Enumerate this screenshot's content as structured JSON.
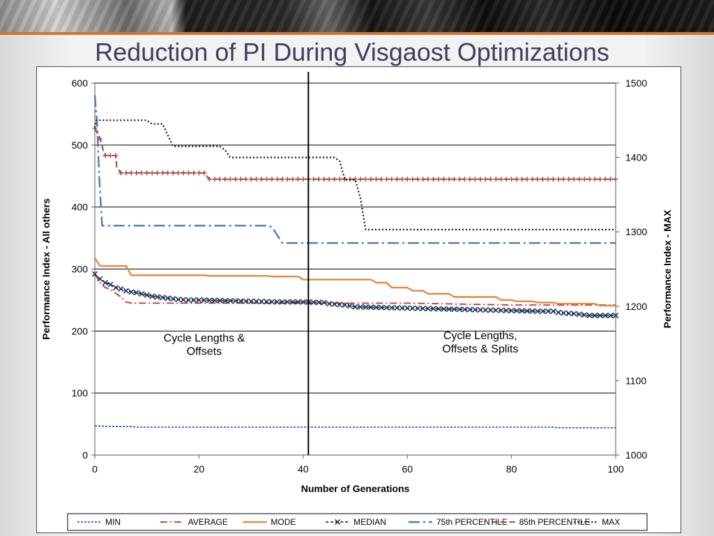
{
  "slide": {
    "title": "Reduction of PI During Visgaost Optimizations"
  },
  "chart_data": {
    "type": "line",
    "xlabel": "Number of Generations",
    "ylabel_left": "Performance Index - All others",
    "ylabel_right": "Performance Index - MAX",
    "xlim": [
      0,
      100
    ],
    "ylim_left": [
      0,
      600
    ],
    "ylim_right": [
      1000,
      1500
    ],
    "x_ticks": [
      "0",
      "20",
      "40",
      "60",
      "80",
      "100"
    ],
    "y_left_ticks": [
      "0",
      "100",
      "200",
      "300",
      "400",
      "500",
      "600"
    ],
    "y_right_ticks": [
      "1000",
      "1100",
      "1200",
      "1300",
      "1400",
      "1500"
    ],
    "grid": "horizontal",
    "legend_position": "bottom",
    "divider_x": 41,
    "annotations": [
      {
        "lines": [
          "Cycle Lengths &",
          "Offsets"
        ],
        "x": 21,
        "y": 183
      },
      {
        "lines": [
          "Cycle Lengths,",
          "Offsets & Splits"
        ],
        "x": 74,
        "y": 187
      }
    ],
    "series": [
      {
        "name": "MIN",
        "axis": "left",
        "color": "#1f3fd1",
        "dash": "3,2",
        "width": 1.6,
        "marker": "none",
        "x": [
          0,
          3,
          7,
          8,
          88,
          89,
          100
        ],
        "y": [
          47,
          46,
          46,
          45,
          45,
          44,
          44
        ]
      },
      {
        "name": "AVERAGE",
        "axis": "left",
        "color": "#d62b2b",
        "dash": "10,4,2,4",
        "width": 1.8,
        "marker": "none",
        "x": [
          0,
          1,
          2,
          3,
          5,
          6,
          7,
          20,
          40,
          60,
          80,
          100
        ],
        "y": [
          292,
          278,
          270,
          267,
          255,
          247,
          245,
          245,
          245,
          245,
          242,
          242
        ]
      },
      {
        "name": "MODE",
        "axis": "left",
        "color": "#e28a3c",
        "dash": "none",
        "width": 2.4,
        "marker": "none",
        "x": [
          0,
          1,
          6,
          7,
          21,
          22,
          33,
          34,
          39,
          40,
          53,
          54,
          56,
          57,
          60,
          61,
          63,
          64,
          68,
          69,
          77,
          78,
          80,
          81,
          84,
          85,
          88,
          89,
          96,
          97,
          100
        ],
        "y": [
          318,
          305,
          305,
          290,
          290,
          289,
          289,
          288,
          288,
          283,
          283,
          278,
          278,
          270,
          270,
          265,
          265,
          260,
          260,
          255,
          255,
          250,
          250,
          248,
          248,
          246,
          246,
          244,
          244,
          241,
          241
        ]
      },
      {
        "name": "MEDIAN",
        "axis": "left",
        "color": "#1c3557",
        "dash": "4,3",
        "width": 1.8,
        "marker": "x",
        "x": [
          0,
          1,
          2,
          3,
          4,
          5,
          6,
          7,
          8,
          9,
          10,
          11,
          12,
          14,
          16,
          18,
          20,
          25,
          30,
          35,
          40,
          44,
          45,
          48,
          50,
          55,
          60,
          65,
          70,
          75,
          80,
          85,
          88,
          89,
          90,
          92,
          93,
          94,
          95,
          100
        ],
        "y": [
          292,
          284,
          278,
          275,
          270,
          268,
          265,
          263,
          262,
          260,
          258,
          256,
          255,
          253,
          251,
          250,
          250,
          249,
          248,
          247,
          247,
          246,
          244,
          242,
          239,
          238,
          237,
          236,
          235,
          234,
          233,
          232,
          232,
          230,
          229,
          228,
          227,
          226,
          225,
          225
        ]
      },
      {
        "name": "75th PERCENTILE",
        "axis": "left",
        "color": "#4a7ab8",
        "dash": "16,5,3,5",
        "width": 2.4,
        "marker": "none",
        "x": [
          0,
          0.4,
          0.9,
          1.4,
          33,
          34,
          35,
          36,
          100
        ],
        "y": [
          580,
          540,
          440,
          370,
          370,
          368,
          355,
          342,
          342
        ]
      },
      {
        "name": "85th PERCENTILE",
        "axis": "left",
        "color": "#a0473e",
        "dash": "9,4",
        "width": 2.0,
        "marker": "plus",
        "x": [
          0,
          1,
          1.5,
          2,
          3,
          4,
          4.2,
          5,
          10,
          15,
          20,
          21,
          22,
          30,
          40,
          50,
          60,
          70,
          80,
          90,
          100
        ],
        "y": [
          527,
          510,
          495,
          483,
          483,
          483,
          465,
          455,
          455,
          455,
          455,
          455,
          445,
          445,
          445,
          445,
          445,
          445,
          445,
          445,
          445
        ]
      },
      {
        "name": "MAX",
        "axis": "right",
        "color": "#111111",
        "dash": "2,3",
        "width": 2.2,
        "marker": "none",
        "x": [
          0,
          0.3,
          10,
          11,
          13,
          14,
          15,
          24,
          25,
          26,
          46,
          47,
          48,
          50,
          51,
          52,
          100
        ],
        "y": [
          1440,
          1450,
          1450,
          1445,
          1445,
          1430,
          1415,
          1415,
          1410,
          1400,
          1400,
          1395,
          1370,
          1370,
          1345,
          1303,
          1303
        ]
      }
    ]
  }
}
